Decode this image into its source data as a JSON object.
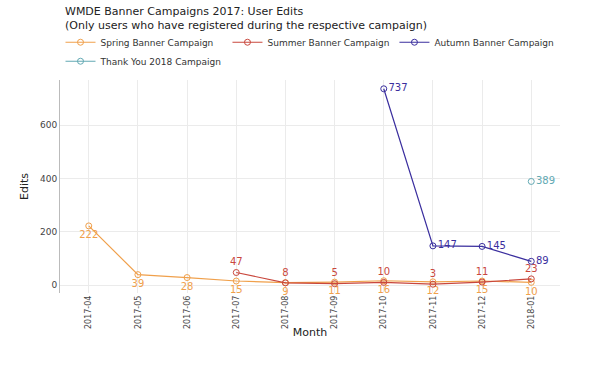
{
  "chart_data": {
    "type": "line",
    "title": "WMDE Banner Campaigns 2017: User Edits",
    "subtitle": "(Only users who have registered during the respective campaign)",
    "x_label": "Month",
    "y_label": "Edits",
    "categories": [
      "2017-04",
      "2017-05",
      "2017-06",
      "2017-07",
      "2017-08",
      "2017-09",
      "2017-10",
      "2017-11",
      "2017-12",
      "2018-01"
    ],
    "series": [
      {
        "name": "Spring Banner Campaign",
        "color": "#f0a04b",
        "values": [
          222,
          39,
          28,
          15,
          9,
          11,
          16,
          12,
          15,
          10
        ]
      },
      {
        "name": "Summer Banner Campaign",
        "color": "#c9473d",
        "values": [
          null,
          null,
          null,
          47,
          8,
          5,
          10,
          3,
          11,
          23
        ]
      },
      {
        "name": "Autumn Banner Campaign",
        "color": "#3a2e9e",
        "values": [
          null,
          null,
          null,
          null,
          null,
          null,
          737,
          147,
          145,
          89
        ]
      },
      {
        "name": "Thank You 2018 Campaign",
        "color": "#62a9b3",
        "values": [
          null,
          null,
          null,
          null,
          null,
          null,
          null,
          null,
          null,
          389
        ]
      }
    ],
    "ylim": [
      -30,
      770
    ],
    "yticks": [
      0,
      200,
      400,
      600
    ],
    "grid": true,
    "legend": "top",
    "data_labels": true,
    "marker": "circle"
  }
}
